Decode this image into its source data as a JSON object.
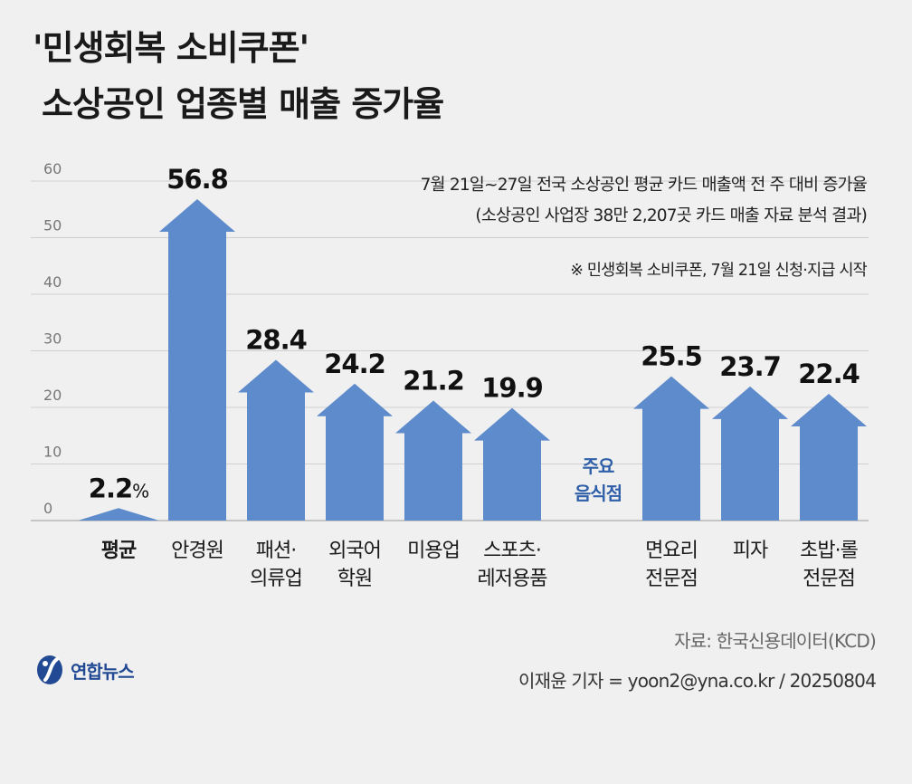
{
  "title": {
    "line1": "'민생회복 소비쿠폰'",
    "line2": "소상공인 업종별 매출 증가율"
  },
  "notes": {
    "line1": "7월 21일~27일 전국 소상공인 평균 카드 매출액 전 주 대비 증가율",
    "line2": "(소상공인 사업장 38만 2,207곳 카드 매출 자료 분석 결과)",
    "line3": "※ 민생회복 소비쿠폰, 7월 21일 신청·지급 시작"
  },
  "chart_data": {
    "type": "bar",
    "style": "arrow",
    "title": "소상공인 업종별 매출 증가율",
    "ylim": [
      0,
      60
    ],
    "yticks": [
      0,
      10,
      20,
      30,
      40,
      50,
      60
    ],
    "value_suffix": "%",
    "group_label": [
      "주요",
      "음식점"
    ],
    "categories": [
      {
        "label": [
          "평균"
        ],
        "value": 2.2,
        "value_text": "2.2",
        "unit": "%",
        "bold": true,
        "group": "main"
      },
      {
        "label": [
          "안경원"
        ],
        "value": 56.8,
        "value_text": "56.8",
        "group": "main"
      },
      {
        "label": [
          "패션·",
          "의류업"
        ],
        "value": 28.4,
        "value_text": "28.4",
        "group": "main"
      },
      {
        "label": [
          "외국어",
          "학원"
        ],
        "value": 24.2,
        "value_text": "24.2",
        "group": "main"
      },
      {
        "label": [
          "미용업"
        ],
        "value": 21.2,
        "value_text": "21.2",
        "group": "main"
      },
      {
        "label": [
          "스포츠·",
          "레저용품"
        ],
        "value": 19.9,
        "value_text": "19.9",
        "group": "main"
      },
      {
        "label": [
          "면요리",
          "전문점"
        ],
        "value": 25.5,
        "value_text": "25.5",
        "group": "food"
      },
      {
        "label": [
          "피자"
        ],
        "value": 23.7,
        "value_text": "23.7",
        "group": "food"
      },
      {
        "label": [
          "초밥·롤",
          "전문점"
        ],
        "value": 22.4,
        "value_text": "22.4",
        "group": "food"
      }
    ],
    "bar_color": "#5e8bcb",
    "group_label_color": "#2e5fa8",
    "grid": true
  },
  "footer": {
    "source": "자료: 한국신용데이터(KCD)",
    "byline": "이재윤 기자 = yoon2@yna.co.kr / 20250804",
    "logo_text": "연합뉴스",
    "logo_color": "#224a94"
  }
}
